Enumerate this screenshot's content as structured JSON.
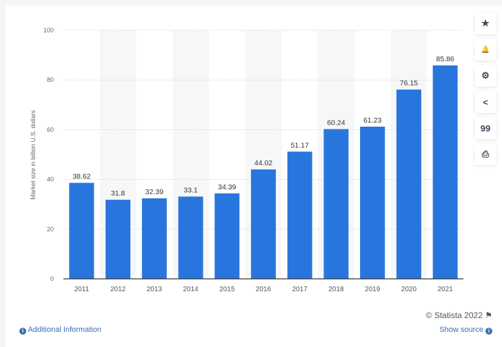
{
  "chart_data": {
    "type": "bar",
    "categories": [
      "2011",
      "2012",
      "2013",
      "2014",
      "2015",
      "2016",
      "2017",
      "2018",
      "2019",
      "2020",
      "2021"
    ],
    "values": [
      38.62,
      31.8,
      32.39,
      33.1,
      34.39,
      44.02,
      51.17,
      60.24,
      61.23,
      76.15,
      85.86
    ],
    "data_labels": [
      "38.62",
      "31.8",
      "32.39",
      "33.1",
      "34.39",
      "44.02",
      "51.17",
      "60.24",
      "61.23",
      "76.15",
      "85.86"
    ],
    "xlabel": "",
    "ylabel": "Market size in billion U.S. dollars",
    "ylim": [
      0,
      100
    ],
    "yticks": [
      0,
      20,
      40,
      60,
      80,
      100
    ],
    "grid": true,
    "bar_color": "#2876dd"
  },
  "tools": [
    {
      "icon": "star-icon",
      "glyph": "★"
    },
    {
      "icon": "bell-icon",
      "glyph": "🔔"
    },
    {
      "icon": "gear-icon",
      "glyph": "⚙"
    },
    {
      "icon": "share-icon",
      "glyph": "<"
    },
    {
      "icon": "quote-icon",
      "glyph": "99"
    },
    {
      "icon": "print-icon",
      "glyph": "⎙"
    }
  ],
  "footer": {
    "credit": "© Statista 2022",
    "additional_info": "Additional Information",
    "show_source": "Show source",
    "info_glyph": "i",
    "flag_glyph": "⚑"
  }
}
